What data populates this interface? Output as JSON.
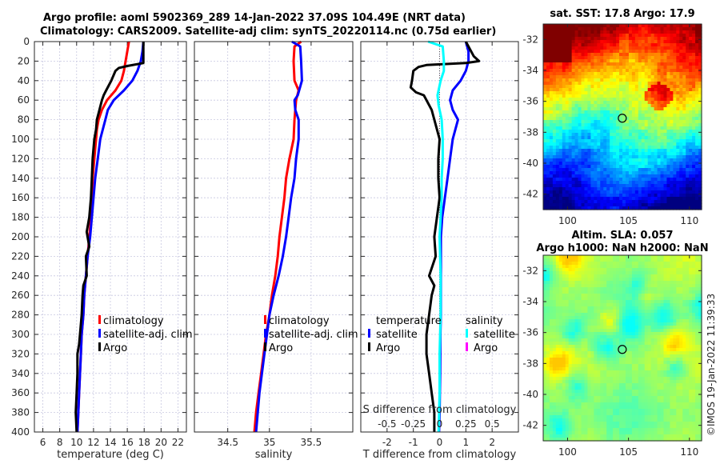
{
  "figure": {
    "title_line1": "Argo profile: aoml 5902369_289 14-Jan-2022 37.09S 104.49E (NRT data)",
    "title_line2": "Climatology: CARS2009. Satellite-adj clim: synTS_20220114.nc (0.75d earlier)",
    "copyright": "©IMOS 19-Jan-2022 11:39:33"
  },
  "colors": {
    "climatology": "#ff0000",
    "satellite": "#0000ff",
    "argo": "#000000",
    "salinity_satellite": "#00ffff",
    "salinity_argo": "#ff00ff",
    "grid": "#c8c8e0"
  },
  "chart_data": [
    {
      "type": "line",
      "name": "temperature-profile",
      "xlabel": "temperature (deg C)",
      "ylabel": "depth",
      "xlim": [
        5,
        23
      ],
      "ylim": [
        0,
        400
      ],
      "y_reversed": true,
      "xticks": [
        6,
        8,
        10,
        12,
        14,
        16,
        18,
        20,
        22
      ],
      "yticks": [
        0,
        20,
        40,
        60,
        80,
        100,
        120,
        140,
        160,
        180,
        200,
        220,
        240,
        260,
        280,
        300,
        320,
        340,
        360,
        380,
        400
      ],
      "grid": true,
      "legend": {
        "placement": "center-right",
        "entries": [
          "climatology",
          "satellite-adj. clim",
          "Argo"
        ]
      },
      "series": [
        {
          "name": "climatology",
          "color_key": "climatology",
          "points": [
            [
              16.2,
              0
            ],
            [
              16.0,
              10
            ],
            [
              15.8,
              20
            ],
            [
              15.6,
              30
            ],
            [
              15.3,
              40
            ],
            [
              14.6,
              50
            ],
            [
              13.6,
              60
            ],
            [
              13.0,
              70
            ],
            [
              12.6,
              80
            ],
            [
              12.4,
              90
            ],
            [
              12.3,
              100
            ],
            [
              12.1,
              120
            ],
            [
              11.9,
              140
            ],
            [
              11.8,
              160
            ],
            [
              11.7,
              180
            ],
            [
              11.5,
              200
            ],
            [
              11.3,
              220
            ],
            [
              11.1,
              240
            ],
            [
              10.9,
              260
            ],
            [
              10.8,
              280
            ],
            [
              10.6,
              300
            ],
            [
              10.5,
              320
            ],
            [
              10.4,
              340
            ],
            [
              10.3,
              360
            ],
            [
              10.2,
              380
            ],
            [
              10.1,
              400
            ]
          ]
        },
        {
          "name": "satellite-adj. clim",
          "color_key": "satellite",
          "points": [
            [
              17.9,
              0
            ],
            [
              17.8,
              10
            ],
            [
              17.6,
              20
            ],
            [
              17.2,
              30
            ],
            [
              16.6,
              40
            ],
            [
              15.6,
              50
            ],
            [
              14.4,
              60
            ],
            [
              13.7,
              70
            ],
            [
              13.4,
              80
            ],
            [
              13.1,
              90
            ],
            [
              12.8,
              100
            ],
            [
              12.5,
              120
            ],
            [
              12.2,
              140
            ],
            [
              12.0,
              160
            ],
            [
              11.8,
              180
            ],
            [
              11.6,
              200
            ],
            [
              11.3,
              220
            ],
            [
              11.1,
              240
            ],
            [
              10.9,
              260
            ],
            [
              10.8,
              280
            ],
            [
              10.6,
              300
            ],
            [
              10.5,
              320
            ],
            [
              10.4,
              340
            ],
            [
              10.3,
              360
            ],
            [
              10.2,
              380
            ],
            [
              10.1,
              400
            ]
          ]
        },
        {
          "name": "Argo",
          "color_key": "argo",
          "points": [
            [
              17.9,
              0
            ],
            [
              17.9,
              10
            ],
            [
              17.9,
              22
            ],
            [
              16.0,
              25
            ],
            [
              15.0,
              27
            ],
            [
              14.6,
              30
            ],
            [
              14.1,
              40
            ],
            [
              13.5,
              50
            ],
            [
              13.2,
              55
            ],
            [
              13.0,
              60
            ],
            [
              12.7,
              70
            ],
            [
              12.4,
              80
            ],
            [
              12.3,
              90
            ],
            [
              12.1,
              100
            ],
            [
              11.9,
              120
            ],
            [
              11.8,
              140
            ],
            [
              11.7,
              160
            ],
            [
              11.5,
              180
            ],
            [
              11.2,
              195
            ],
            [
              11.5,
              210
            ],
            [
              11.1,
              220
            ],
            [
              11.2,
              240
            ],
            [
              10.8,
              250
            ],
            [
              10.7,
              260
            ],
            [
              10.6,
              280
            ],
            [
              10.4,
              300
            ],
            [
              10.3,
              310
            ],
            [
              10.1,
              320
            ],
            [
              10.1,
              340
            ],
            [
              10.0,
              360
            ],
            [
              9.9,
              380
            ],
            [
              10.0,
              400
            ]
          ]
        }
      ]
    },
    {
      "type": "line",
      "name": "salinity-profile",
      "xlabel": "salinity",
      "xlim": [
        34.1,
        36.0
      ],
      "ylim": [
        0,
        400
      ],
      "y_reversed": true,
      "xticks": [
        34.5,
        35,
        35.5
      ],
      "grid": true,
      "legend": {
        "placement": "center-right",
        "entries": [
          "climatology",
          "satellite-adj. clim",
          "Argo"
        ]
      },
      "series": [
        {
          "name": "climatology",
          "color_key": "climatology",
          "points": [
            [
              35.38,
              0
            ],
            [
              35.3,
              5
            ],
            [
              35.29,
              20
            ],
            [
              35.3,
              40
            ],
            [
              35.35,
              50
            ],
            [
              35.32,
              60
            ],
            [
              35.3,
              80
            ],
            [
              35.29,
              100
            ],
            [
              35.24,
              120
            ],
            [
              35.2,
              140
            ],
            [
              35.18,
              160
            ],
            [
              35.15,
              180
            ],
            [
              35.12,
              200
            ],
            [
              35.1,
              220
            ],
            [
              35.07,
              240
            ],
            [
              35.03,
              260
            ],
            [
              35.0,
              280
            ],
            [
              34.96,
              300
            ],
            [
              34.93,
              320
            ],
            [
              34.9,
              340
            ],
            [
              34.87,
              360
            ],
            [
              34.84,
              380
            ],
            [
              34.82,
              400
            ]
          ]
        },
        {
          "name": "satellite-adj. clim",
          "color_key": "satellite",
          "points": [
            [
              35.27,
              0
            ],
            [
              35.37,
              5
            ],
            [
              35.38,
              20
            ],
            [
              35.39,
              40
            ],
            [
              35.34,
              55
            ],
            [
              35.3,
              60
            ],
            [
              35.31,
              70
            ],
            [
              35.35,
              80
            ],
            [
              35.35,
              100
            ],
            [
              35.32,
              120
            ],
            [
              35.3,
              140
            ],
            [
              35.26,
              160
            ],
            [
              35.23,
              180
            ],
            [
              35.2,
              200
            ],
            [
              35.16,
              220
            ],
            [
              35.11,
              240
            ],
            [
              35.05,
              260
            ],
            [
              35.0,
              280
            ],
            [
              34.97,
              300
            ],
            [
              34.94,
              320
            ],
            [
              34.91,
              340
            ],
            [
              34.88,
              360
            ],
            [
              34.86,
              380
            ],
            [
              34.84,
              400
            ]
          ]
        }
      ]
    },
    {
      "type": "line",
      "name": "difference-profile",
      "xlabel": "T difference from climatology",
      "x2label": "S difference from climatology",
      "xlim": [
        -3,
        3
      ],
      "x2lim": [
        -0.75,
        0.75
      ],
      "ylim": [
        0,
        400
      ],
      "y_reversed": true,
      "xticks": [
        -2,
        -1,
        0,
        1,
        2
      ],
      "x2ticks": [
        -0.5,
        -0.25,
        0,
        0.25,
        0.5
      ],
      "x2ticklabels": [
        "-0.5",
        "-0.25",
        "0",
        "0.25",
        "0.5"
      ],
      "grid": true,
      "legend": {
        "placement": "lower-center",
        "groups": [
          {
            "title": "temperature",
            "entries": [
              "satellite",
              "Argo"
            ]
          },
          {
            "title": "salinity",
            "entries": [
              "satellite",
              "Argo"
            ]
          }
        ]
      },
      "series": [
        {
          "name": "T satellite",
          "axis": "T",
          "color_key": "satellite",
          "points": [
            [
              1.0,
              0
            ],
            [
              1.1,
              10
            ],
            [
              1.1,
              20
            ],
            [
              1.0,
              30
            ],
            [
              0.8,
              40
            ],
            [
              0.5,
              50
            ],
            [
              0.4,
              60
            ],
            [
              0.5,
              70
            ],
            [
              0.7,
              80
            ],
            [
              0.6,
              90
            ],
            [
              0.5,
              100
            ],
            [
              0.4,
              120
            ],
            [
              0.3,
              140
            ],
            [
              0.2,
              160
            ],
            [
              0.1,
              180
            ],
            [
              0.05,
              200
            ],
            [
              0.05,
              240
            ],
            [
              0.05,
              280
            ],
            [
              0.03,
              300
            ],
            [
              0.02,
              340
            ],
            [
              0.0,
              380
            ],
            [
              -0.02,
              400
            ]
          ]
        },
        {
          "name": "T Argo",
          "axis": "T",
          "color_key": "argo",
          "points": [
            [
              1.0,
              0
            ],
            [
              1.3,
              15
            ],
            [
              1.5,
              20
            ],
            [
              1.0,
              22
            ],
            [
              -0.5,
              24
            ],
            [
              -0.8,
              26
            ],
            [
              -1.0,
              30
            ],
            [
              -1.05,
              40
            ],
            [
              -1.1,
              47
            ],
            [
              -0.9,
              52
            ],
            [
              -0.6,
              55
            ],
            [
              -0.5,
              60
            ],
            [
              -0.3,
              70
            ],
            [
              -0.2,
              80
            ],
            [
              0.0,
              100
            ],
            [
              -0.05,
              120
            ],
            [
              -0.05,
              140
            ],
            [
              0.0,
              160
            ],
            [
              -0.1,
              180
            ],
            [
              -0.2,
              200
            ],
            [
              -0.15,
              220
            ],
            [
              -0.4,
              240
            ],
            [
              -0.2,
              250
            ],
            [
              -0.3,
              260
            ],
            [
              -0.4,
              280
            ],
            [
              -0.5,
              300
            ],
            [
              -0.5,
              320
            ],
            [
              -0.4,
              340
            ],
            [
              -0.3,
              360
            ],
            [
              -0.2,
              380
            ],
            [
              -0.2,
              400
            ]
          ]
        },
        {
          "name": "S satellite",
          "axis": "S",
          "color_key": "salinity_satellite",
          "points": [
            [
              -0.11,
              0
            ],
            [
              0.03,
              5
            ],
            [
              0.04,
              20
            ],
            [
              0.04,
              30
            ],
            [
              0.01,
              40
            ],
            [
              -0.02,
              55
            ],
            [
              -0.01,
              65
            ],
            [
              0.02,
              80
            ],
            [
              0.03,
              100
            ],
            [
              0.03,
              120
            ],
            [
              0.02,
              140
            ],
            [
              0.02,
              160
            ],
            [
              0.01,
              180
            ],
            [
              0.0,
              200
            ],
            [
              0.01,
              240
            ],
            [
              0.01,
              280
            ],
            [
              0.0,
              320
            ],
            [
              0.0,
              360
            ],
            [
              -0.01,
              400
            ]
          ]
        },
        {
          "name": "S Argo",
          "axis": "S",
          "color_key": "salinity_argo",
          "points": []
        }
      ]
    },
    {
      "type": "heatmap",
      "name": "sst-map",
      "title": "sat. SST: 17.8 Argo: 17.9",
      "xlim": [
        98,
        111
      ],
      "ylim": [
        -43,
        -31
      ],
      "xticks": [
        100,
        105,
        110
      ],
      "yticks": [
        -32,
        -34,
        -36,
        -38,
        -40,
        -42
      ],
      "colormap": "jet",
      "marker": {
        "lon": 104.49,
        "lat": -37.09,
        "shape": "circle"
      }
    },
    {
      "type": "heatmap",
      "name": "sla-map",
      "title_line1": "Altim. SLA: 0.057",
      "title_line2": "Argo h1000: NaN h2000: NaN",
      "xlim": [
        98,
        111
      ],
      "ylim": [
        -43,
        -31
      ],
      "xticks": [
        100,
        105,
        110
      ],
      "yticks": [
        -32,
        -34,
        -36,
        -38,
        -40,
        -42
      ],
      "colormap": "jet",
      "marker": {
        "lon": 104.49,
        "lat": -37.09,
        "shape": "circle"
      }
    }
  ]
}
